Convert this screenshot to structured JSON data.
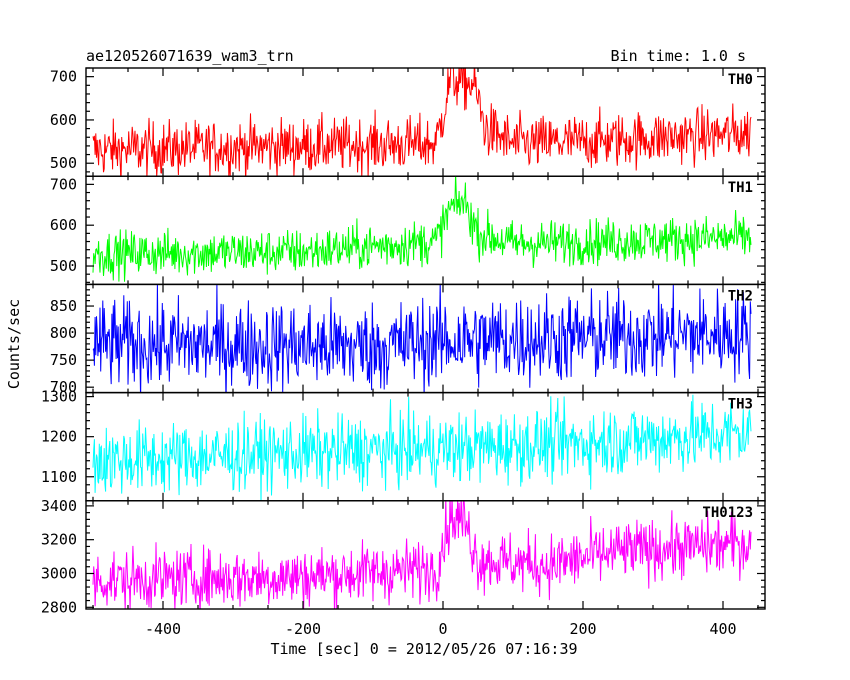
{
  "header": {
    "title": "ae120526071639_wam3_trn",
    "bin_time": "Bin time: 1.0 s"
  },
  "chart_data": {
    "type": "line",
    "xlabel": "Time [sec] 0 = 2012/05/26 07:16:39",
    "ylabel": "Counts/sec",
    "xlim": [
      -510,
      460
    ],
    "xticks": [
      -400,
      -200,
      0,
      200,
      400
    ],
    "x_range": [
      -500,
      440
    ],
    "bin_seconds": 1.0,
    "series": [
      {
        "name": "TH0",
        "color": "#ff0000",
        "ylim": [
          470,
          720
        ],
        "yticks": [
          500,
          600,
          700
        ],
        "profile": [
          {
            "t": -500,
            "level": 530
          },
          {
            "t": -200,
            "level": 540
          },
          {
            "t": -10,
            "level": 545
          },
          {
            "t": 5,
            "level": 650
          },
          {
            "t": 10,
            "level": 695
          },
          {
            "t": 45,
            "level": 680
          },
          {
            "t": 60,
            "level": 580
          },
          {
            "t": 100,
            "level": 545
          },
          {
            "t": 200,
            "level": 550
          },
          {
            "t": 440,
            "level": 570
          }
        ],
        "noise": 32
      },
      {
        "name": "TH1",
        "color": "#00ff00",
        "ylim": [
          455,
          720
        ],
        "yticks": [
          500,
          600,
          700
        ],
        "profile": [
          {
            "t": -500,
            "level": 530
          },
          {
            "t": -200,
            "level": 535
          },
          {
            "t": -10,
            "level": 560
          },
          {
            "t": 10,
            "level": 640
          },
          {
            "t": 30,
            "level": 660
          },
          {
            "t": 50,
            "level": 580
          },
          {
            "t": 100,
            "level": 555
          },
          {
            "t": 440,
            "level": 570
          }
        ],
        "noise": 28
      },
      {
        "name": "TH2",
        "color": "#0000ff",
        "ylim": [
          690,
          890
        ],
        "yticks": [
          700,
          750,
          800,
          850
        ],
        "profile": [
          {
            "t": -500,
            "level": 780
          },
          {
            "t": -100,
            "level": 775
          },
          {
            "t": 0,
            "level": 785
          },
          {
            "t": 440,
            "level": 800
          }
        ],
        "noise": 42
      },
      {
        "name": "TH3",
        "color": "#00ffff",
        "ylim": [
          1040,
          1310
        ],
        "yticks": [
          1100,
          1200,
          1300
        ],
        "profile": [
          {
            "t": -500,
            "level": 1140
          },
          {
            "t": -200,
            "level": 1160
          },
          {
            "t": 0,
            "level": 1170
          },
          {
            "t": 200,
            "level": 1185
          },
          {
            "t": 440,
            "level": 1210
          }
        ],
        "noise": 45
      },
      {
        "name": "TH0123",
        "color": "#ff00ff",
        "ylim": [
          2790,
          3430
        ],
        "yticks": [
          2800,
          3000,
          3200,
          3400
        ],
        "profile": [
          {
            "t": -500,
            "level": 2960
          },
          {
            "t": -200,
            "level": 2980
          },
          {
            "t": -10,
            "level": 3030
          },
          {
            "t": 10,
            "level": 3330
          },
          {
            "t": 30,
            "level": 3320
          },
          {
            "t": 50,
            "level": 3080
          },
          {
            "t": 150,
            "level": 3050
          },
          {
            "t": 250,
            "level": 3130
          },
          {
            "t": 440,
            "level": 3180
          }
        ],
        "noise": 90
      }
    ]
  }
}
